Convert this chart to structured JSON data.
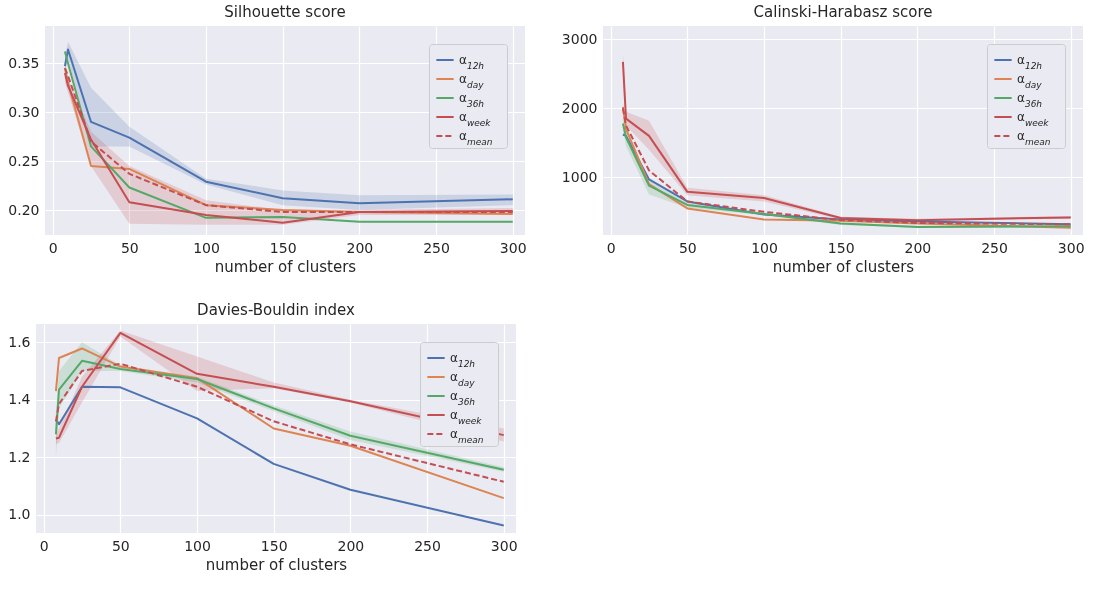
{
  "chart_data": [
    {
      "type": "line",
      "title": "Silhouette score",
      "xlabel": "number of clusters",
      "x": [
        8,
        10,
        25,
        50,
        100,
        150,
        200,
        300
      ],
      "xlim": [
        -5,
        308
      ],
      "xticks": [
        0,
        50,
        100,
        150,
        200,
        250,
        300
      ],
      "ylim": [
        0.1745,
        0.388
      ],
      "yticks": [
        {
          "value": 0.2,
          "label": "0.20"
        },
        0.25,
        {
          "value": 0.3,
          "label": "0.30"
        },
        0.35
      ],
      "grid": true,
      "legend": "top right",
      "series": [
        {
          "name": "α$_{12h}$",
          "color": "#4c72b0",
          "values": [
            0.347,
            0.364,
            0.29,
            0.274,
            0.229,
            0.212,
            0.207,
            0.211
          ],
          "lower": [
            0.34,
            0.355,
            0.265,
            0.265,
            0.226,
            0.205,
            0.2,
            0.205
          ],
          "upper": [
            0.355,
            0.372,
            0.325,
            0.285,
            0.232,
            0.22,
            0.215,
            0.216
          ]
        },
        {
          "name": "α$_{day}$",
          "color": "#dd8452",
          "values": [
            0.345,
            0.33,
            0.245,
            0.242,
            0.205,
            0.2,
            0.198,
            0.196
          ]
        },
        {
          "name": "α$_{36h}$",
          "color": "#55a868",
          "values": [
            0.362,
            0.35,
            0.265,
            0.223,
            0.192,
            0.193,
            0.188,
            0.188
          ]
        },
        {
          "name": "α$_{week}$",
          "color": "#c44e52",
          "values": [
            0.34,
            0.327,
            0.272,
            0.208,
            0.195,
            0.187,
            0.198,
            0.199
          ],
          "lower": [
            0.33,
            0.32,
            0.245,
            0.186,
            0.185,
            0.185,
            0.195,
            0.195
          ],
          "upper": [
            0.35,
            0.335,
            0.28,
            0.245,
            0.21,
            0.2,
            0.2,
            0.202
          ]
        },
        {
          "name": "α$_{mean}$",
          "color": "#c44e52",
          "line_style": "dashed",
          "values": [
            0.345,
            0.337,
            0.27,
            0.237,
            0.205,
            0.198,
            0.198,
            0.198
          ]
        }
      ]
    },
    {
      "type": "line",
      "title": "Calinski-Harabasz score",
      "xlabel": "number of clusters",
      "x": [
        8,
        10,
        25,
        50,
        100,
        150,
        200,
        300
      ],
      "xlim": [
        -5,
        308
      ],
      "xticks": [
        0,
        50,
        100,
        150,
        200,
        250,
        300
      ],
      "ylim": [
        165,
        3190
      ],
      "yticks": [
        1000,
        2000,
        3000
      ],
      "grid": true,
      "legend": "top right",
      "series": [
        {
          "name": "α$_{12h}$",
          "color": "#4c72b0",
          "values": [
            1620,
            1600,
            970,
            650,
            460,
            390,
            360,
            320
          ]
        },
        {
          "name": "α$_{day}$",
          "color": "#dd8452",
          "values": [
            2020,
            1700,
            900,
            550,
            390,
            370,
            330,
            270
          ]
        },
        {
          "name": "α$_{36h}$",
          "color": "#55a868",
          "values": [
            1780,
            1580,
            880,
            600,
            470,
            330,
            280,
            290
          ],
          "lower": [
            1700,
            1450,
            750,
            560,
            450,
            310,
            270,
            270
          ],
          "upper": [
            1850,
            1700,
            950,
            630,
            490,
            350,
            300,
            310
          ]
        },
        {
          "name": "α$_{week}$",
          "color": "#c44e52",
          "values": [
            2670,
            1850,
            1600,
            790,
            700,
            410,
            380,
            420
          ],
          "lower": [
            2400,
            1750,
            1400,
            740,
            650,
            390,
            370,
            400
          ],
          "upper": [
            2800,
            1950,
            1820,
            850,
            740,
            430,
            400,
            440
          ]
        },
        {
          "name": "α$_{mean}$",
          "color": "#c44e52",
          "line_style": "dashed",
          "values": [
            2000,
            1750,
            1100,
            650,
            500,
            380,
            340,
            320
          ]
        }
      ]
    },
    {
      "type": "line",
      "title": "Davies-Bouldin index",
      "xlabel": "number of clusters",
      "x": [
        8,
        10,
        25,
        50,
        100,
        150,
        200,
        300
      ],
      "xlim": [
        -5,
        308
      ],
      "xticks": [
        0,
        50,
        100,
        150,
        200,
        250,
        300
      ],
      "ylim": [
        0.937,
        1.663
      ],
      "yticks": [
        {
          "value": 1.0,
          "label": "1.0"
        },
        1.2,
        1.4,
        1.6
      ],
      "grid": true,
      "legend": "top right",
      "series": [
        {
          "name": "α$_{12h}$",
          "color": "#4c72b0",
          "values": [
            1.33,
            1.315,
            1.445,
            1.443,
            1.335,
            1.177,
            1.087,
            0.963
          ]
        },
        {
          "name": "α$_{day}$",
          "color": "#dd8452",
          "values": [
            1.43,
            1.545,
            1.578,
            1.515,
            1.475,
            1.3,
            1.24,
            1.058
          ]
        },
        {
          "name": "α$_{36h}$",
          "color": "#55a868",
          "values": [
            1.28,
            1.435,
            1.535,
            1.507,
            1.472,
            1.37,
            1.275,
            1.157
          ],
          "lower": [
            1.2,
            1.37,
            1.5,
            1.5,
            1.46,
            1.36,
            1.26,
            1.15
          ],
          "upper": [
            1.35,
            1.5,
            1.6,
            1.52,
            1.48,
            1.38,
            1.29,
            1.165
          ]
        },
        {
          "name": "α$_{week}$",
          "color": "#c44e52",
          "values": [
            1.265,
            1.268,
            1.445,
            1.632,
            1.49,
            1.445,
            1.395,
            1.277
          ],
          "lower": [
            1.245,
            1.25,
            1.39,
            1.62,
            1.43,
            1.44,
            1.39,
            1.255
          ],
          "upper": [
            1.28,
            1.3,
            1.48,
            1.64,
            1.55,
            1.46,
            1.4,
            1.3
          ]
        },
        {
          "name": "α$_{mean}$",
          "color": "#c44e52",
          "line_style": "dashed",
          "values": [
            1.325,
            1.385,
            1.5,
            1.525,
            1.445,
            1.325,
            1.245,
            1.115
          ]
        }
      ]
    }
  ]
}
